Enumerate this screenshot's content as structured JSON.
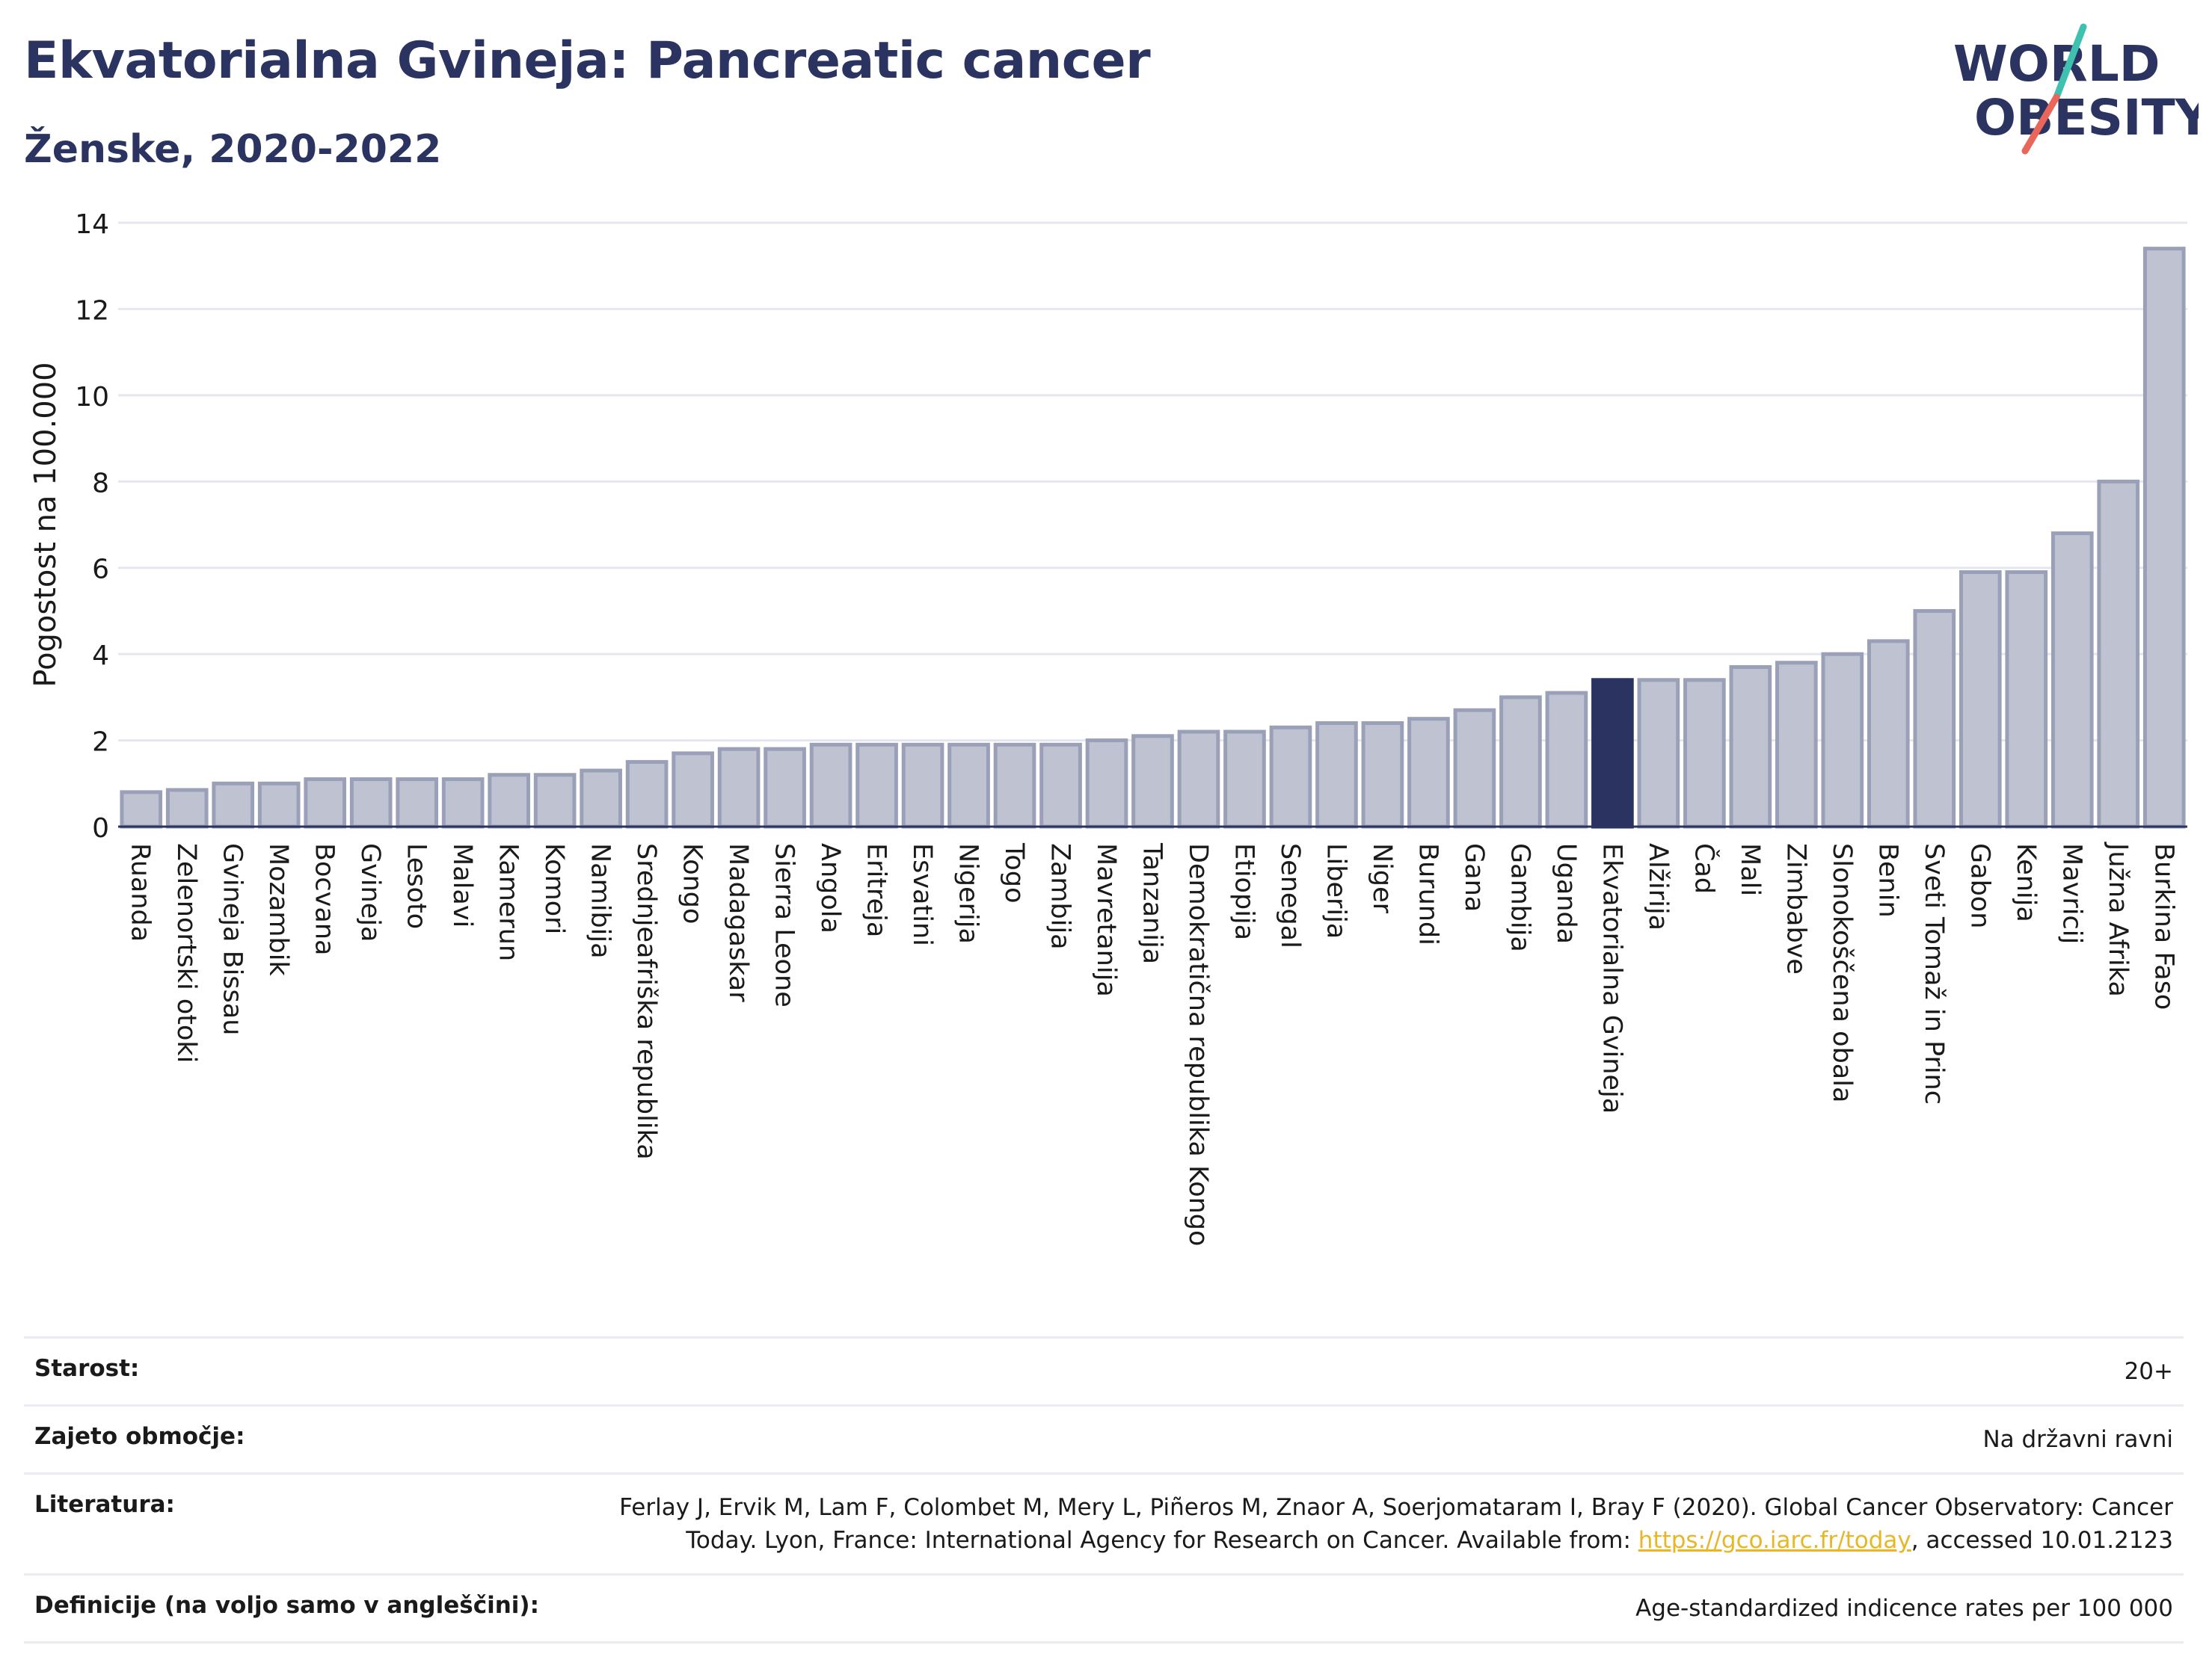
{
  "header": {
    "title": "Ekvatorialna Gvineja: Pancreatic cancer",
    "subtitle": "Ženske, 2020-2022"
  },
  "logo": {
    "line1": "WORLD",
    "line2": "OBESITY",
    "accent_colors": [
      "#3fc1b0",
      "#e8665a"
    ]
  },
  "colors": {
    "bar_default": "#bfc3d1",
    "bar_stroke": "#9aa0b8",
    "bar_highlight": "#2b3361",
    "title": "#2b3361",
    "grid": "#e6e7ee",
    "link": "#e8b626"
  },
  "chart_data": {
    "type": "bar",
    "ylabel": "Pogostost na 100.000",
    "ylim": [
      0,
      14
    ],
    "yticks": [
      0,
      2,
      4,
      6,
      8,
      10,
      12,
      14
    ],
    "grid": true,
    "highlight": "Ekvatorialna Gvineja",
    "categories": [
      "Ruanda",
      "Zelenortski otoki",
      "Gvineja Bissau",
      "Mozambik",
      "Bocvana",
      "Gvineja",
      "Lesoto",
      "Malavi",
      "Kamerun",
      "Komori",
      "Namibija",
      "Srednjeafriška republika",
      "Kongo",
      "Madagaskar",
      "Sierra Leone",
      "Angola",
      "Eritreja",
      "Esvatini",
      "Nigerija",
      "Togo",
      "Zambija",
      "Mavretanija",
      "Tanzanija",
      "Demokratična republika Kongo",
      "Etiopija",
      "Senegal",
      "Liberija",
      "Niger",
      "Burundi",
      "Gana",
      "Gambija",
      "Uganda",
      "Ekvatorialna Gvineja",
      "Alžirija",
      "Čad",
      "Mali",
      "Zimbabve",
      "Slonokoščena obala",
      "Benin",
      "Sveti Tomaž in Princ",
      "Gabon",
      "Kenija",
      "Mavricij",
      "Južna Afrika",
      "Burkina Faso"
    ],
    "values": [
      0.8,
      0.85,
      1.0,
      1.0,
      1.1,
      1.1,
      1.1,
      1.1,
      1.2,
      1.2,
      1.3,
      1.5,
      1.7,
      1.8,
      1.8,
      1.9,
      1.9,
      1.9,
      1.9,
      1.9,
      1.9,
      2.0,
      2.1,
      2.2,
      2.2,
      2.3,
      2.4,
      2.4,
      2.5,
      2.7,
      3.0,
      3.1,
      3.4,
      3.4,
      3.4,
      3.7,
      3.8,
      4.0,
      4.3,
      5.0,
      5.9,
      5.9,
      6.8,
      8.0,
      13.4
    ]
  },
  "meta": {
    "age_label": "Starost:",
    "age_value": "20+",
    "coverage_label": "Zajeto območje:",
    "coverage_value": "Na državni ravni",
    "literature_label": "Literatura:",
    "literature_text_before": "Ferlay J, Ervik M, Lam F, Colombet M, Mery L, Piñeros M, Znaor A, Soerjomataram I, Bray F (2020). Global Cancer Observatory: Cancer Today. Lyon, France: International Agency for Research on Cancer. Available from: ",
    "literature_link": "https://gco.iarc.fr/today",
    "literature_text_after": ", accessed 10.01.2123",
    "definitions_label": "Definicije (na voljo samo v angleščini):",
    "definitions_value": "Age-standardized indicence rates per 100 000"
  }
}
